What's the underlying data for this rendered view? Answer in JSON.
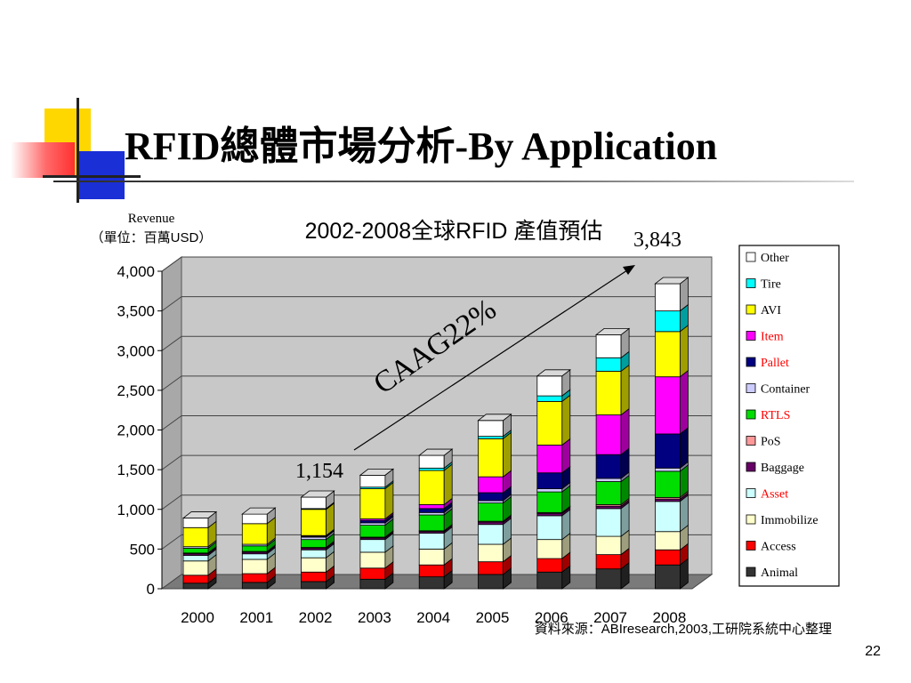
{
  "slide": {
    "title": "RFID總體市場分析-By Application",
    "page_number": "22"
  },
  "chart_data": {
    "type": "bar",
    "stacked": true,
    "title": "2002-2008全球RFID 產值預估",
    "ylabel": "Revenue",
    "ylabel_unit": "（單位：百萬USD）",
    "ylim": [
      0,
      4000
    ],
    "yticks": [
      "0",
      "500",
      "1,000",
      "1,500",
      "2,000",
      "2,500",
      "3,000",
      "3,500",
      "4,000"
    ],
    "ytick_values": [
      0,
      500,
      1000,
      1500,
      2000,
      2500,
      3000,
      3500,
      4000
    ],
    "categories": [
      "2000",
      "2001",
      "2002",
      "2003",
      "2004",
      "2005",
      "2006",
      "2007",
      "2008"
    ],
    "grid": true,
    "legend_position": "right",
    "series": [
      {
        "name": "Animal",
        "color": "#333333",
        "values": [
          70,
          80,
          90,
          120,
          150,
          180,
          210,
          250,
          300
        ]
      },
      {
        "name": "Access",
        "color": "#ff0000",
        "values": [
          100,
          110,
          120,
          140,
          150,
          160,
          170,
          180,
          190
        ]
      },
      {
        "name": "Immobilize",
        "color": "#ffffcc",
        "values": [
          180,
          180,
          180,
          200,
          200,
          220,
          240,
          230,
          230
        ]
      },
      {
        "name": "Asset",
        "color": "#ccffff",
        "values": [
          70,
          70,
          100,
          160,
          200,
          250,
          300,
          350,
          380
        ]
      },
      {
        "name": "Baggage",
        "color": "#660066",
        "values": [
          20,
          20,
          20,
          20,
          20,
          30,
          30,
          30,
          30
        ]
      },
      {
        "name": "PoS",
        "color": "#ff9999",
        "values": [
          10,
          10,
          10,
          10,
          10,
          10,
          10,
          20,
          20
        ]
      },
      {
        "name": "RTLS",
        "color": "#00dd00",
        "values": [
          60,
          70,
          100,
          150,
          200,
          230,
          260,
          290,
          330
        ]
      },
      {
        "name": "Container",
        "color": "#ccccff",
        "values": [
          20,
          20,
          30,
          30,
          30,
          30,
          40,
          40,
          40
        ]
      },
      {
        "name": "Pallet",
        "color": "#000080",
        "values": [
          0,
          0,
          10,
          30,
          50,
          100,
          200,
          300,
          430
        ]
      },
      {
        "name": "Item",
        "color": "#ff00ff",
        "values": [
          0,
          0,
          10,
          20,
          50,
          200,
          350,
          500,
          720
        ]
      },
      {
        "name": "AVI",
        "color": "#ffff00",
        "values": [
          240,
          260,
          330,
          380,
          430,
          480,
          550,
          550,
          570
        ]
      },
      {
        "name": "Tire",
        "color": "#00ffff",
        "values": [
          0,
          0,
          10,
          20,
          30,
          30,
          70,
          170,
          260
        ]
      },
      {
        "name": "Other",
        "color": "#ffffff",
        "values": [
          120,
          120,
          144,
          150,
          160,
          200,
          250,
          290,
          343
        ]
      }
    ],
    "legend_label_colors": {
      "Item": "#ff0000",
      "Pallet": "#ff0000",
      "RTLS": "#ff0000",
      "Asset": "#ff0000"
    },
    "annotations": {
      "value_2002": "1,154",
      "value_2008": "3,843",
      "cagr": "CAAG22%"
    },
    "source": "資料來源：ABIresearch,2003,工研院系統中心整理"
  }
}
